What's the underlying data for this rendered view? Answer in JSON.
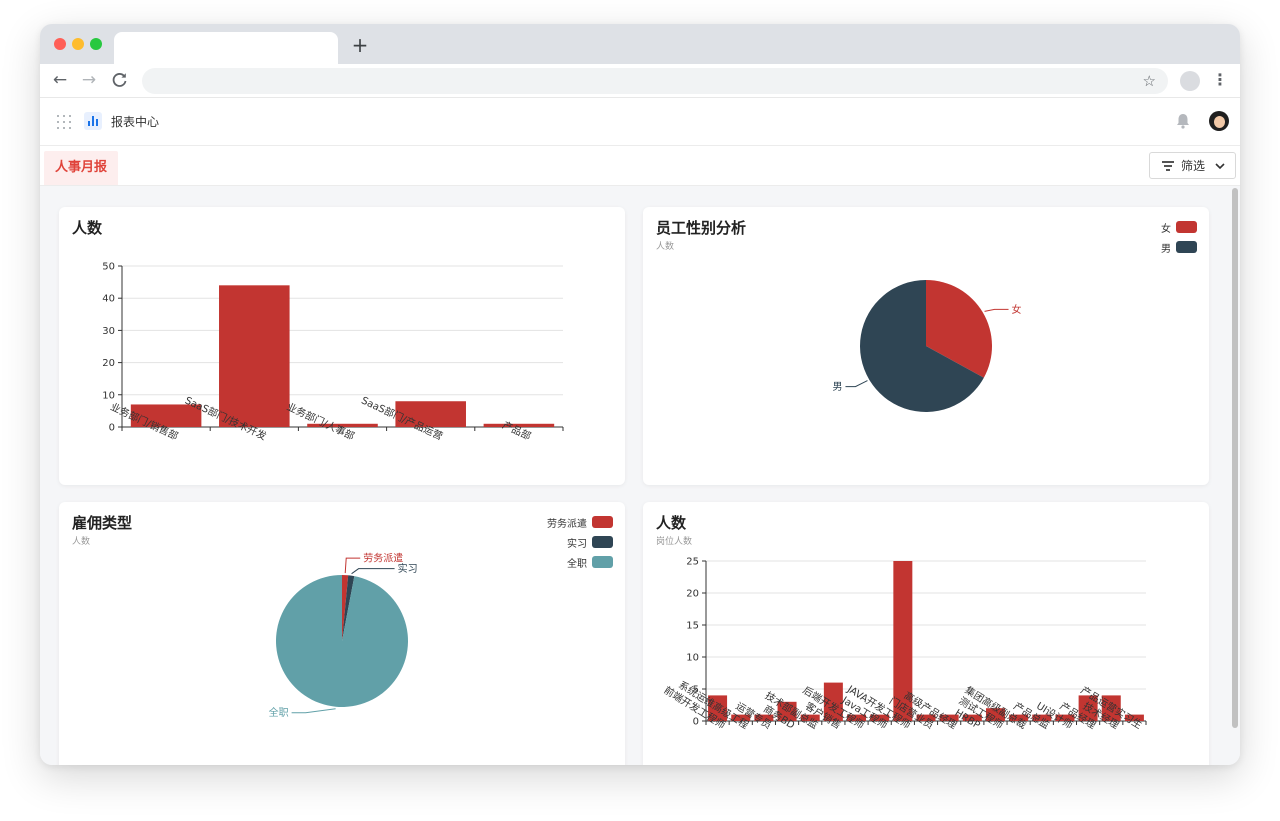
{
  "app": {
    "title": "报表中心"
  },
  "tabs": [
    {
      "label": "人事月报"
    }
  ],
  "filter": {
    "label": "筛选"
  },
  "colors": {
    "red": "#c23531",
    "navy": "#2f4554",
    "teal": "#61a0a8",
    "accent": "#e0433a"
  },
  "icons": {
    "apps": "grid-icon",
    "logo": "bar-chart-icon",
    "bell": "bell-icon",
    "filter": "filter-icon"
  },
  "chart_data": [
    {
      "type": "bar",
      "title": "人数",
      "categories": [
        "业务部门/销售部",
        "SaaS部门/技术开发",
        "业务部门/人事部",
        "SaaS部门/产品运营",
        "产品部"
      ],
      "values": [
        7,
        44,
        1,
        8,
        1
      ],
      "ylim": [
        0,
        50
      ],
      "yticks": [
        0,
        10,
        20,
        30,
        40,
        50
      ],
      "grid": true
    },
    {
      "type": "pie",
      "title": "员工性别分析",
      "subtitle": "人数",
      "slices": [
        {
          "name": "女",
          "value": 33
        },
        {
          "name": "男",
          "value": 67
        }
      ],
      "legend": "top-right"
    },
    {
      "type": "pie",
      "title": "雇佣类型",
      "subtitle": "人数",
      "slices": [
        {
          "name": "劳务派遣",
          "value": 1.5
        },
        {
          "name": "实习",
          "value": 1.5
        },
        {
          "name": "全职",
          "value": 97
        }
      ],
      "legend": "top-right"
    },
    {
      "type": "bar",
      "title": "人数",
      "subtitle": "岗位人数",
      "categories": [
        "前端开发工程师",
        "系统运维高级工程",
        "运营专员",
        "商务BD",
        "技术部副总监",
        "客户销售",
        "后端开发工程师",
        "Java工程师",
        "JAVA开发工程师",
        "门店营业员",
        "高级产品经理",
        "HRBP",
        "测试工程师",
        "集团高级副总裁",
        "产品总监",
        "UI设计师",
        "产品经理",
        "技术经理",
        "产品运营实习生"
      ],
      "values": [
        4,
        1,
        1,
        3,
        1,
        6,
        1,
        1,
        25,
        1,
        1,
        1,
        2,
        1,
        1,
        1,
        4,
        4,
        1
      ],
      "ylim": [
        0,
        25
      ],
      "yticks": [
        0,
        5,
        10,
        15,
        20,
        25
      ],
      "grid": true
    }
  ]
}
